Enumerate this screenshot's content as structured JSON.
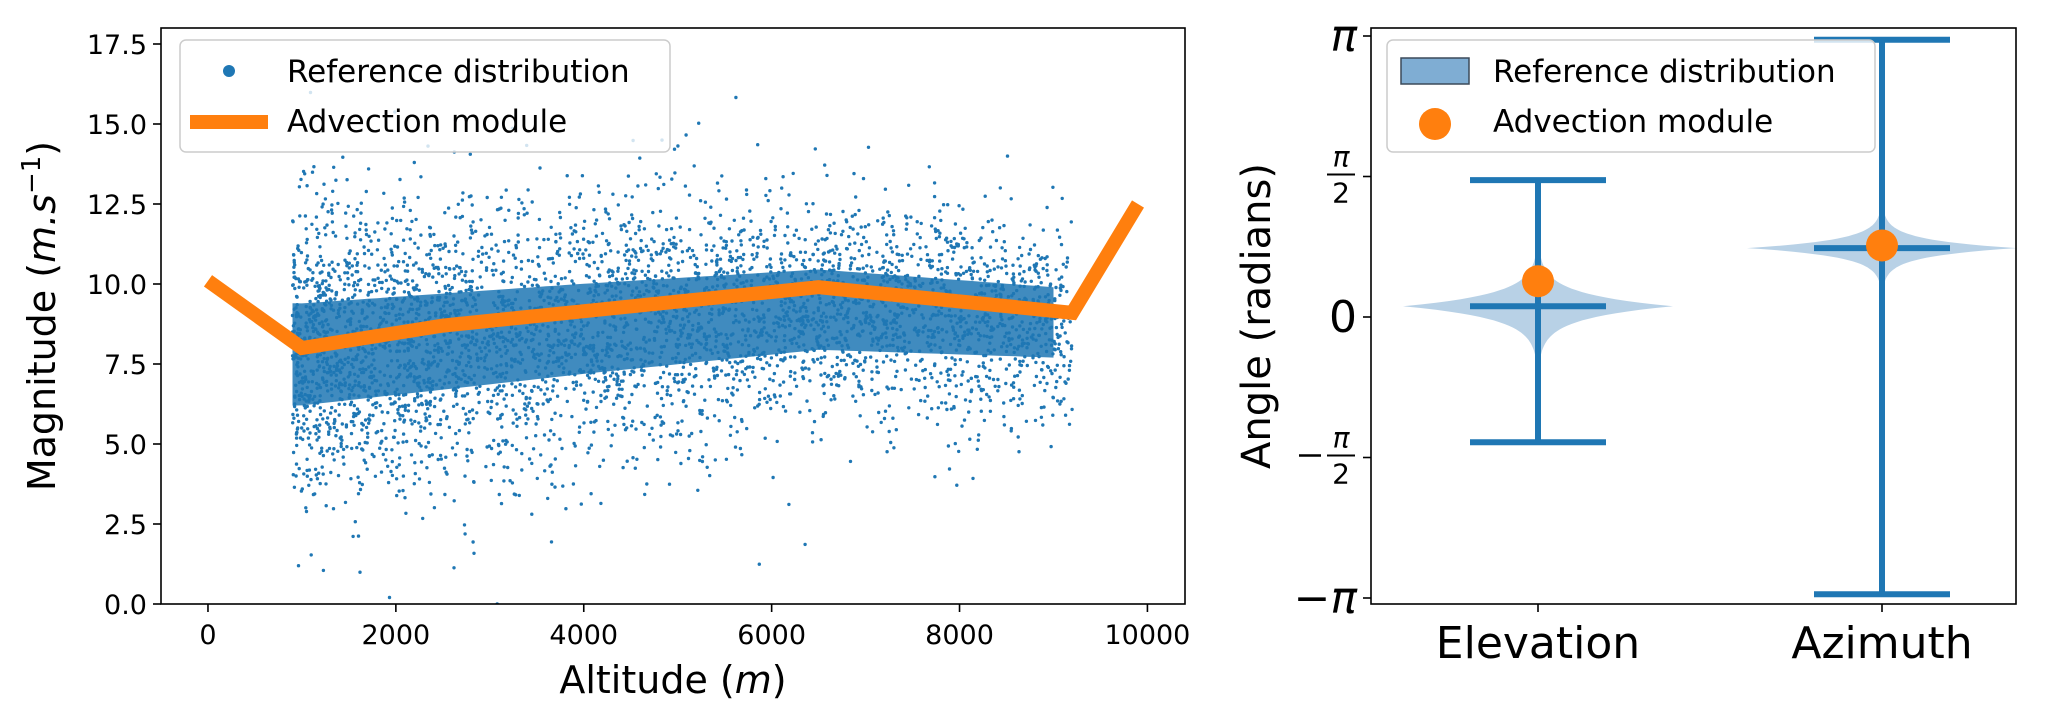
{
  "colors": {
    "blue": "#1f77b4",
    "orange": "#ff7f0e",
    "violin_fill": "#a6c5e0"
  },
  "chart_data": [
    {
      "type": "scatter",
      "xlabel_text": "Altitude (",
      "xlabel_var": "m",
      "xlabel_close": ")",
      "ylabel_text": "Magnitude (",
      "ylabel_var": "m.s",
      "ylabel_sup": "−1",
      "ylabel_close": ")",
      "xlim": [
        -500,
        10400
      ],
      "ylim": [
        0,
        18
      ],
      "xticks": [
        0,
        2000,
        4000,
        6000,
        8000,
        10000
      ],
      "xtick_labels": [
        "0",
        "2000",
        "4000",
        "6000",
        "8000",
        "10000"
      ],
      "yticks": [
        0.0,
        2.5,
        5.0,
        7.5,
        10.0,
        12.5,
        15.0,
        17.5
      ],
      "ytick_labels": [
        "0.0",
        "2.5",
        "5.0",
        "7.5",
        "10.0",
        "12.5",
        "15.0",
        "17.5"
      ],
      "legend_position": "top-left",
      "series": [
        {
          "name": "Reference distribution",
          "kind": "scatter",
          "x_range": [
            900,
            9200
          ],
          "mean_y_by_altitude": {
            "x": [
              1000,
              2500,
              4000,
              6500,
              9000
            ],
            "y": [
              7.8,
              8.2,
              8.6,
              9.2,
              8.8
            ]
          }
        },
        {
          "name": "Advection module",
          "kind": "line",
          "x": [
            0,
            1000,
            2500,
            6500,
            9200,
            9900
          ],
          "y": [
            10.1,
            8.0,
            8.7,
            9.9,
            9.1,
            12.5
          ]
        }
      ]
    },
    {
      "type": "violin",
      "ylabel": "Angle (radians)",
      "ylim": [
        -3.1416,
        3.1416
      ],
      "yticks": [
        -3.1416,
        -1.5708,
        0,
        1.5708,
        3.1416
      ],
      "ytick_labels": [
        "−π",
        "−π/2",
        "0",
        "π/2",
        "π"
      ],
      "categories": [
        "Elevation",
        "Azimuth"
      ],
      "legend_position": "top-left",
      "series": [
        {
          "name": "Reference distribution",
          "kind": "violin",
          "min": [
            -1.4,
            -3.1
          ],
          "max": [
            1.53,
            3.1
          ],
          "mean": [
            0.12,
            0.77
          ]
        },
        {
          "name": "Advection module",
          "kind": "point",
          "values": [
            0.4,
            0.8
          ]
        }
      ]
    }
  ]
}
